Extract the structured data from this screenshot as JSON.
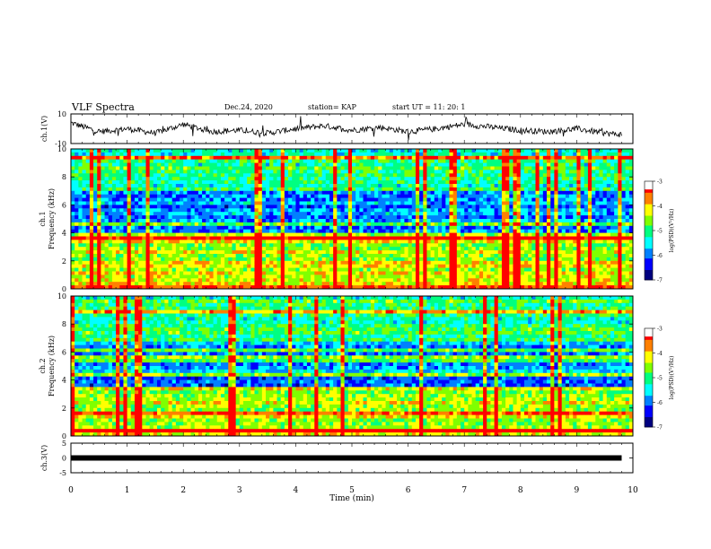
{
  "header": {
    "title": "VLF Spectra",
    "date": "Dec.24, 2020",
    "station": "station= KAP",
    "start": "start  UT =  11: 20: 1"
  },
  "colors": {
    "colormap": [
      "#000080",
      "#0000ff",
      "#0080ff",
      "#00ffff",
      "#00ff80",
      "#80ff00",
      "#ffff00",
      "#ff8000",
      "#ff0000",
      "#ffffff"
    ],
    "trace": "#000000"
  },
  "chart_data": [
    {
      "type": "line",
      "panel": "ch1-waveform",
      "ylabel": "ch.1(V)",
      "ylim": [
        -10,
        10
      ],
      "yticks": [
        "10",
        "-10"
      ],
      "x": [
        0,
        0.5,
        1,
        1.5,
        2,
        2.5,
        3,
        3.5,
        4,
        4.5,
        5,
        5.5,
        6,
        6.5,
        7,
        7.5,
        8,
        8.5,
        9,
        9.5,
        9.8
      ],
      "y": [
        4,
        -2,
        0,
        -3,
        3,
        -2,
        -1,
        -3,
        0,
        2,
        -1,
        1,
        -2,
        0,
        3,
        1,
        -1,
        -2,
        0,
        -3,
        -4
      ],
      "grid": false
    },
    {
      "type": "heatmap",
      "panel": "ch1-spectrogram",
      "ylabel": "ch.1 Frequency (kHz)",
      "ylim": [
        0,
        10
      ],
      "yticks": [
        "0",
        "2",
        "4",
        "6",
        "8",
        "10"
      ],
      "colorbar": {
        "label": "log(PSD)(V²/Hz)",
        "range": [
          -7,
          -3
        ],
        "ticks": [
          "-3",
          "-4",
          "-5",
          "-6",
          "-7"
        ]
      },
      "band_low_kHz": [
        0,
        4
      ],
      "band_dark_kHz": [
        4,
        7
      ],
      "grid": false
    },
    {
      "type": "heatmap",
      "panel": "ch2-spectrogram",
      "ylabel": "ch.2 Frequency (kHz)",
      "ylim": [
        0,
        10
      ],
      "yticks": [
        "0",
        "2",
        "4",
        "6",
        "8",
        "10"
      ],
      "colorbar": {
        "label": "log(PSD)(V²/Hz)",
        "range": [
          -7,
          -3
        ],
        "ticks": [
          "-3",
          "-4",
          "-5",
          "-6",
          "-7"
        ]
      },
      "band_low_kHz": [
        0,
        3.5
      ],
      "band_dark_kHz": [
        3.5,
        7
      ],
      "grid": false
    },
    {
      "type": "line",
      "panel": "ch3-waveform",
      "ylabel": "ch.3(V)",
      "ylim": [
        -5,
        5
      ],
      "yticks": [
        "5",
        "0",
        "-5"
      ],
      "x": [
        0,
        9.8
      ],
      "y": [
        0,
        0
      ],
      "grid": false
    }
  ],
  "xaxis": {
    "label": "Time  (min)",
    "range": [
      0,
      10
    ],
    "ticks": [
      "0",
      "1",
      "2",
      "3",
      "4",
      "5",
      "6",
      "7",
      "8",
      "9",
      "10"
    ]
  }
}
